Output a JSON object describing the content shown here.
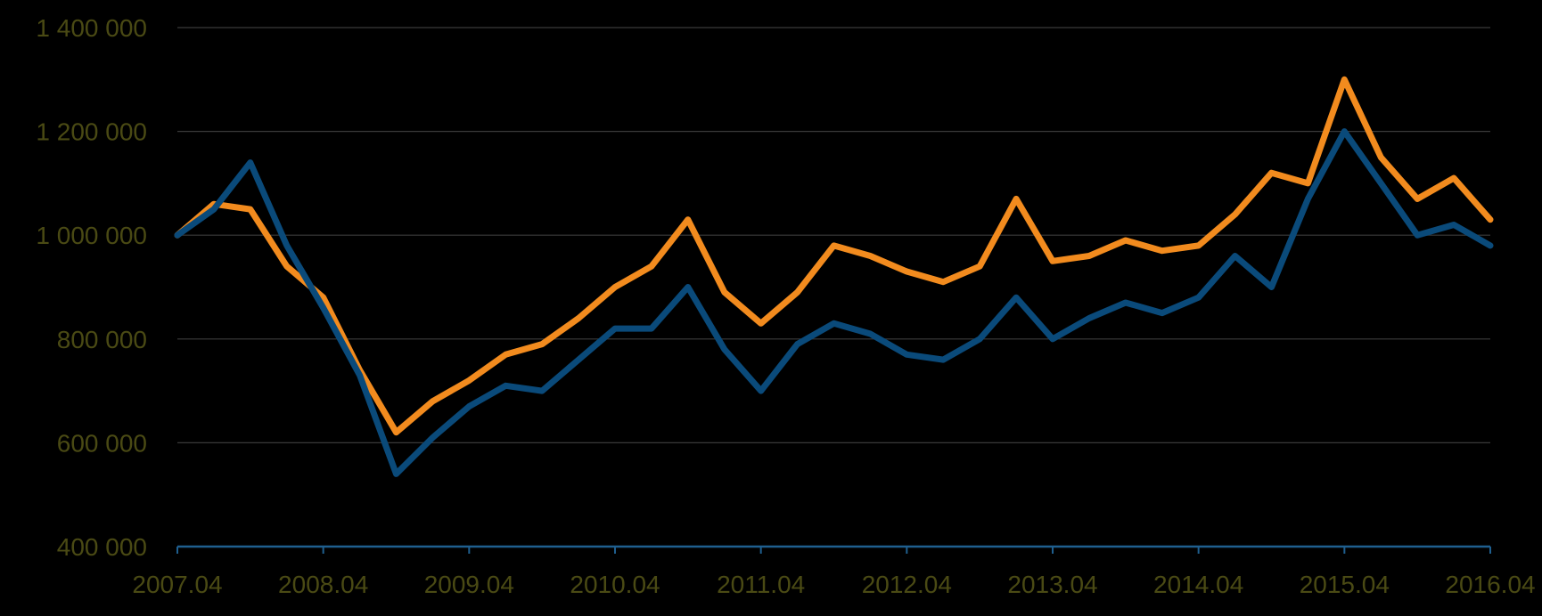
{
  "chart_data": {
    "type": "line",
    "title": "",
    "xlabel": "",
    "ylabel": "",
    "ylim": [
      400000,
      1400000
    ],
    "xlim": [
      "2007.04",
      "2016.04"
    ],
    "grid": true,
    "yticks": [
      {
        "value": 400000,
        "label": "400 000"
      },
      {
        "value": 600000,
        "label": "600 000"
      },
      {
        "value": 800000,
        "label": "800 000"
      },
      {
        "value": 1000000,
        "label": "1 000 000"
      },
      {
        "value": 1200000,
        "label": "1 200 000"
      },
      {
        "value": 1400000,
        "label": "1 400 000"
      }
    ],
    "xticks": [
      "2007.04",
      "2008.04",
      "2009.04",
      "2010.04",
      "2011.04",
      "2012.04",
      "2013.04",
      "2014.04",
      "2015.04",
      "2016.04"
    ],
    "x": [
      "2007.04",
      "2007.07",
      "2007.10",
      "2008.01",
      "2008.04",
      "2008.07",
      "2008.10",
      "2009.01",
      "2009.04",
      "2009.07",
      "2009.10",
      "2010.01",
      "2010.04",
      "2010.07",
      "2010.10",
      "2011.01",
      "2011.04",
      "2011.07",
      "2011.10",
      "2012.01",
      "2012.04",
      "2012.07",
      "2012.10",
      "2013.01",
      "2013.04",
      "2013.07",
      "2013.10",
      "2014.01",
      "2014.04",
      "2014.07",
      "2014.10",
      "2015.01",
      "2015.04",
      "2015.07",
      "2015.10",
      "2016.01",
      "2016.04"
    ],
    "series": [
      {
        "color": "#f28b1e",
        "values": [
          1000000,
          1060000,
          1050000,
          940000,
          880000,
          740000,
          620000,
          680000,
          720000,
          770000,
          790000,
          840000,
          900000,
          940000,
          1030000,
          890000,
          830000,
          890000,
          980000,
          960000,
          930000,
          910000,
          940000,
          1070000,
          950000,
          960000,
          990000,
          970000,
          980000,
          1040000,
          1120000,
          1100000,
          1300000,
          1150000,
          1070000,
          1110000,
          1030000
        ]
      },
      {
        "color": "#0a4a7a",
        "values": [
          1000000,
          1050000,
          1140000,
          980000,
          860000,
          730000,
          540000,
          610000,
          670000,
          710000,
          700000,
          760000,
          820000,
          820000,
          900000,
          780000,
          700000,
          790000,
          830000,
          810000,
          770000,
          760000,
          800000,
          880000,
          800000,
          840000,
          870000,
          850000,
          880000,
          960000,
          900000,
          1070000,
          1200000,
          1100000,
          1000000,
          1020000,
          980000
        ]
      }
    ]
  }
}
